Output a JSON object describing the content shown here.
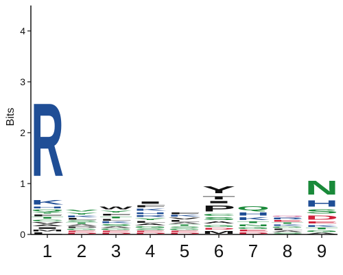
{
  "chart_data": {
    "type": "sequence-logo",
    "ylabel": "Bits",
    "ylim": [
      0,
      4.5
    ],
    "yticks": [
      "0",
      "1",
      "2",
      "3",
      "4"
    ],
    "positions": [
      "1",
      "2",
      "3",
      "4",
      "5",
      "6",
      "7",
      "8",
      "9"
    ],
    "colors": {
      "blue": "#1f4e96",
      "green": "#1a8a3a",
      "black": "#111111",
      "red": "#d0213b",
      "pink": "#d77aa6",
      "gray": "#9a9a9a",
      "light_green": "#5fae6c"
    },
    "stacks": [
      {
        "position": "1",
        "letters": [
          {
            "letter": "L",
            "bits": 0.05,
            "color": "black"
          },
          {
            "letter": "M",
            "bits": 0.05,
            "color": "black"
          },
          {
            "letter": "I",
            "bits": 0.05,
            "color": "black"
          },
          {
            "letter": "A",
            "bits": 0.05,
            "color": "black"
          },
          {
            "letter": "V",
            "bits": 0.05,
            "color": "black"
          },
          {
            "letter": "C",
            "bits": 0.05,
            "color": "green"
          },
          {
            "letter": "T",
            "bits": 0.05,
            "color": "green"
          },
          {
            "letter": "F",
            "bits": 0.05,
            "color": "black"
          },
          {
            "letter": "Y",
            "bits": 0.05,
            "color": "green"
          },
          {
            "letter": "Q",
            "bits": 0.05,
            "color": "green"
          },
          {
            "letter": "H",
            "bits": 0.06,
            "color": "blue"
          },
          {
            "letter": "K",
            "bits": 0.14,
            "color": "blue"
          },
          {
            "letter": "R",
            "bits": 2.3,
            "color": "blue"
          }
        ]
      },
      {
        "position": "2",
        "letters": [
          {
            "letter": "D",
            "bits": 0.04,
            "color": "red"
          },
          {
            "letter": "E",
            "bits": 0.04,
            "color": "red"
          },
          {
            "letter": "G",
            "bits": 0.04,
            "color": "green"
          },
          {
            "letter": "P",
            "bits": 0.04,
            "color": "black"
          },
          {
            "letter": "A",
            "bits": 0.04,
            "color": "black"
          },
          {
            "letter": "T",
            "bits": 0.04,
            "color": "green"
          },
          {
            "letter": "S",
            "bits": 0.04,
            "color": "green"
          },
          {
            "letter": "L",
            "bits": 0.05,
            "color": "black"
          },
          {
            "letter": "K",
            "bits": 0.05,
            "color": "blue"
          },
          {
            "letter": "Y",
            "bits": 0.06,
            "color": "green"
          },
          {
            "letter": "V",
            "bits": 0.06,
            "color": "green"
          }
        ]
      },
      {
        "position": "3",
        "letters": [
          {
            "letter": "D",
            "bits": 0.04,
            "color": "red"
          },
          {
            "letter": "E",
            "bits": 0.04,
            "color": "red"
          },
          {
            "letter": "G",
            "bits": 0.04,
            "color": "green"
          },
          {
            "letter": "A",
            "bits": 0.04,
            "color": "black"
          },
          {
            "letter": "S",
            "bits": 0.05,
            "color": "green"
          },
          {
            "letter": "K",
            "bits": 0.05,
            "color": "blue"
          },
          {
            "letter": "L",
            "bits": 0.05,
            "color": "black"
          },
          {
            "letter": "T",
            "bits": 0.05,
            "color": "green"
          },
          {
            "letter": "F",
            "bits": 0.06,
            "color": "black"
          },
          {
            "letter": "Y",
            "bits": 0.06,
            "color": "green"
          },
          {
            "letter": "W",
            "bits": 0.08,
            "color": "black"
          }
        ]
      },
      {
        "position": "4",
        "letters": [
          {
            "letter": "D",
            "bits": 0.04,
            "color": "red"
          },
          {
            "letter": "E",
            "bits": 0.04,
            "color": "red"
          },
          {
            "letter": "S",
            "bits": 0.04,
            "color": "green"
          },
          {
            "letter": "G",
            "bits": 0.05,
            "color": "green"
          },
          {
            "letter": "A",
            "bits": 0.05,
            "color": "black"
          },
          {
            "letter": "L",
            "bits": 0.05,
            "color": "black"
          },
          {
            "letter": "Y",
            "bits": 0.06,
            "color": "green"
          },
          {
            "letter": "R",
            "bits": 0.06,
            "color": "blue"
          },
          {
            "letter": "H",
            "bits": 0.06,
            "color": "blue"
          },
          {
            "letter": "K",
            "bits": 0.07,
            "color": "blue"
          },
          {
            "letter": "F",
            "bits": 0.07,
            "color": "black"
          },
          {
            "letter": "I",
            "bits": 0.07,
            "color": "black"
          }
        ]
      },
      {
        "position": "5",
        "letters": [
          {
            "letter": "D",
            "bits": 0.04,
            "color": "red"
          },
          {
            "letter": "E",
            "bits": 0.04,
            "color": "red"
          },
          {
            "letter": "G",
            "bits": 0.04,
            "color": "green"
          },
          {
            "letter": "S",
            "bits": 0.04,
            "color": "green"
          },
          {
            "letter": "T",
            "bits": 0.04,
            "color": "green"
          },
          {
            "letter": "A",
            "bits": 0.04,
            "color": "black"
          },
          {
            "letter": "L",
            "bits": 0.05,
            "color": "black"
          },
          {
            "letter": "V",
            "bits": 0.05,
            "color": "black"
          },
          {
            "letter": "K",
            "bits": 0.05,
            "color": "blue"
          },
          {
            "letter": "F",
            "bits": 0.05,
            "color": "black"
          }
        ]
      },
      {
        "position": "6",
        "letters": [
          {
            "letter": "M",
            "bits": 0.08,
            "color": "black"
          },
          {
            "letter": "D",
            "bits": 0.06,
            "color": "red"
          },
          {
            "letter": "G",
            "bits": 0.06,
            "color": "green"
          },
          {
            "letter": "A",
            "bits": 0.07,
            "color": "black"
          },
          {
            "letter": "S",
            "bits": 0.08,
            "color": "green"
          },
          {
            "letter": "C",
            "bits": 0.07,
            "color": "green"
          },
          {
            "letter": "P",
            "bits": 0.18,
            "color": "black"
          },
          {
            "letter": "I",
            "bits": 0.07,
            "color": "black"
          },
          {
            "letter": "T",
            "bits": 0.1,
            "color": "black"
          },
          {
            "letter": "Y",
            "bits": 0.22,
            "color": "black"
          }
        ]
      },
      {
        "position": "7",
        "letters": [
          {
            "letter": "D",
            "bits": 0.05,
            "color": "red"
          },
          {
            "letter": "E",
            "bits": 0.05,
            "color": "red"
          },
          {
            "letter": "G",
            "bits": 0.05,
            "color": "green"
          },
          {
            "letter": "N",
            "bits": 0.06,
            "color": "green"
          },
          {
            "letter": "T",
            "bits": 0.06,
            "color": "green"
          },
          {
            "letter": "K",
            "bits": 0.08,
            "color": "blue"
          },
          {
            "letter": "H",
            "bits": 0.1,
            "color": "blue"
          },
          {
            "letter": "Q",
            "bits": 0.13,
            "color": "green"
          }
        ]
      },
      {
        "position": "8",
        "letters": [
          {
            "letter": "S",
            "bits": 0.04,
            "color": "green"
          },
          {
            "letter": "A",
            "bits": 0.04,
            "color": "black"
          },
          {
            "letter": "L",
            "bits": 0.04,
            "color": "black"
          },
          {
            "letter": "G",
            "bits": 0.04,
            "color": "green"
          },
          {
            "letter": "K",
            "bits": 0.04,
            "color": "blue"
          },
          {
            "letter": "T",
            "bits": 0.04,
            "color": "green"
          },
          {
            "letter": "E",
            "bits": 0.05,
            "color": "red"
          },
          {
            "letter": "R",
            "bits": 0.05,
            "color": "blue"
          },
          {
            "letter": "Q",
            "bits": 0.04,
            "color": "pink"
          }
        ]
      },
      {
        "position": "9",
        "letters": [
          {
            "letter": "A",
            "bits": 0.04,
            "color": "black"
          },
          {
            "letter": "G",
            "bits": 0.05,
            "color": "green"
          },
          {
            "letter": "T",
            "bits": 0.05,
            "color": "green"
          },
          {
            "letter": "K",
            "bits": 0.06,
            "color": "blue"
          },
          {
            "letter": "E",
            "bits": 0.07,
            "color": "red"
          },
          {
            "letter": "D",
            "bits": 0.12,
            "color": "red"
          },
          {
            "letter": "S",
            "bits": 0.12,
            "color": "green"
          },
          {
            "letter": "H",
            "bits": 0.19,
            "color": "blue"
          },
          {
            "letter": "N",
            "bits": 0.43,
            "color": "green"
          }
        ]
      }
    ]
  }
}
